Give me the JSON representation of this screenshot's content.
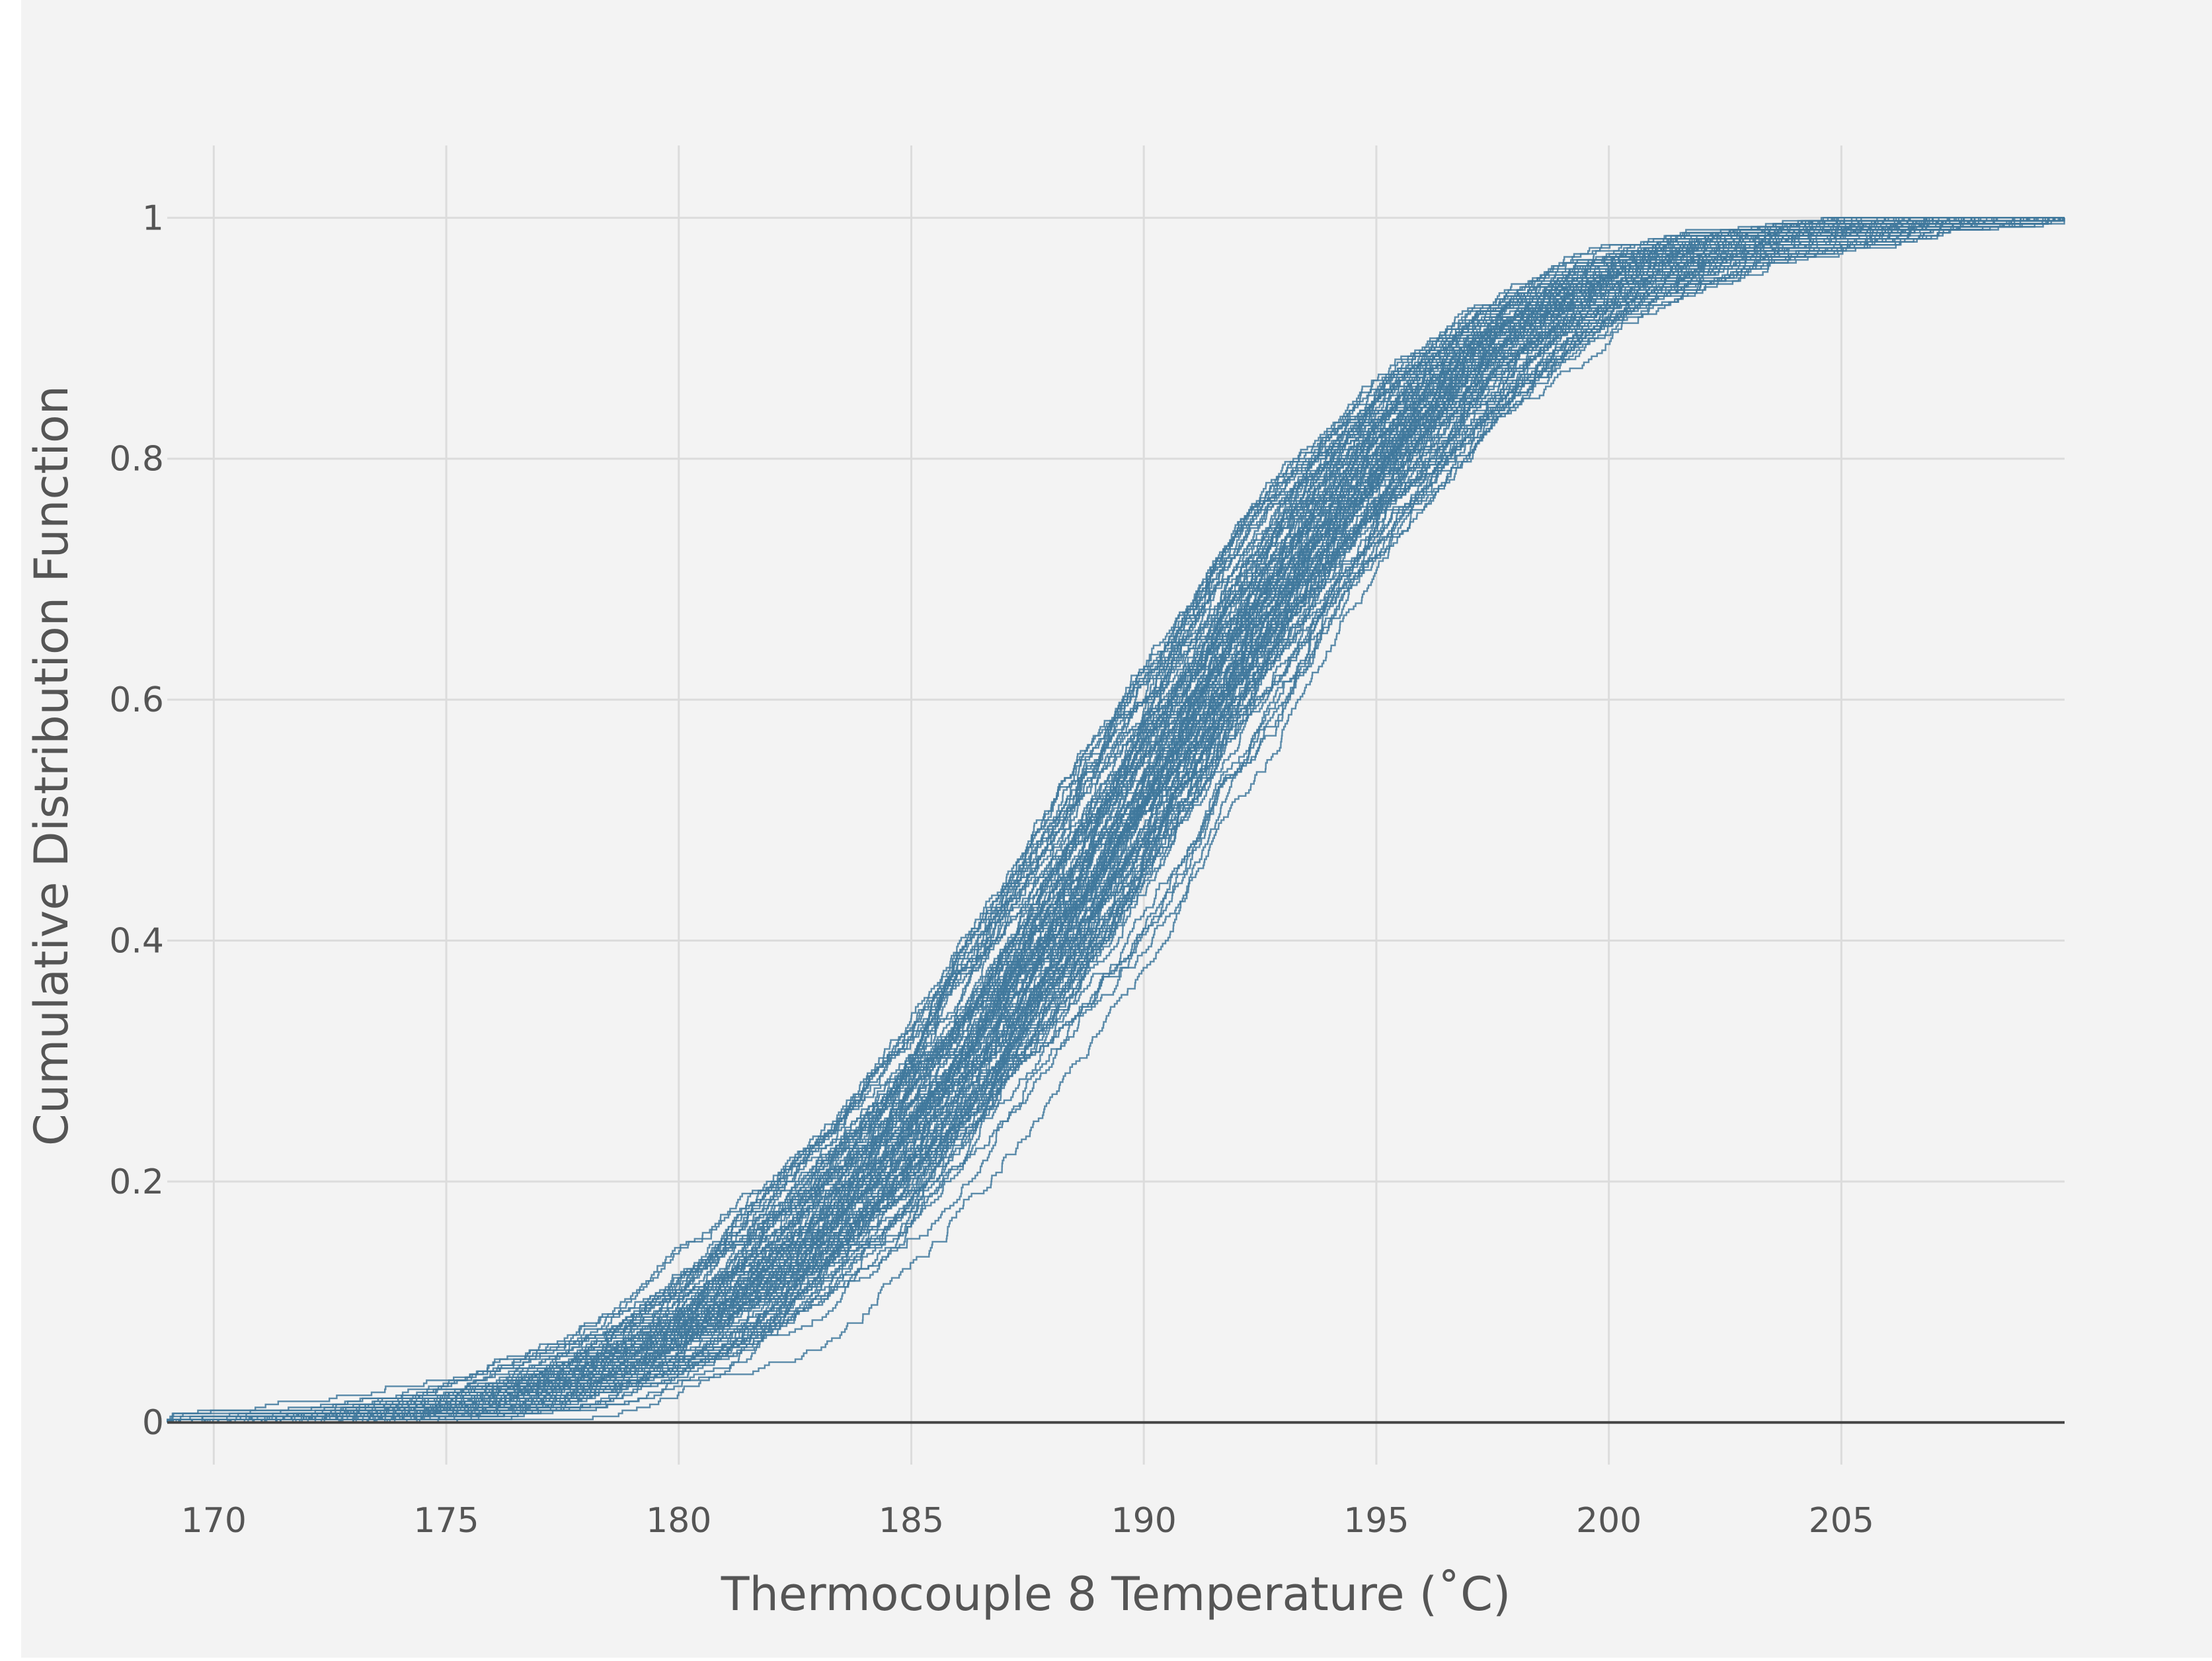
{
  "chart_data": {
    "type": "line",
    "title": "",
    "xlabel": "Thermocouple 8 Temperature (˚C)",
    "ylabel": "Cumulative Distribution Function",
    "xlim": [
      169,
      209.8
    ],
    "ylim": [
      -0.035,
      1.06
    ],
    "x_ticks": [
      170,
      175,
      180,
      185,
      190,
      195,
      200,
      205
    ],
    "x_tick_labels": [
      "170",
      "175",
      "180",
      "185",
      "190",
      "195",
      "200",
      "205"
    ],
    "y_ticks": [
      0,
      0.2,
      0.4,
      0.6,
      0.8,
      1
    ],
    "y_tick_labels": [
      "0",
      "0.2",
      "0.4",
      "0.6",
      "0.8",
      "1"
    ],
    "grid": true,
    "legend": "none",
    "line_color": "#3f789c",
    "series_count": 100,
    "series_envelope": {
      "x_at_cdf_0_5": [
        188.2,
        191.0
      ],
      "x_at_cdf_0_1": [
        180.0,
        184.6
      ],
      "x_at_cdf_0_9": [
        195.5,
        200.0
      ],
      "x_min": 169,
      "x_max": 209.8
    }
  },
  "colors": {
    "background": "#f3f3f3",
    "grid": "#dcdcdc",
    "zero_line": "#444444",
    "series": "#3f789c"
  }
}
